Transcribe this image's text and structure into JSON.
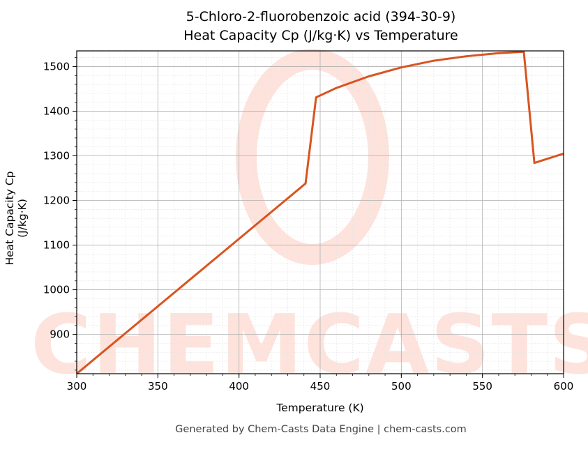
{
  "chart": {
    "title_line1": "5-Chloro-2-fluorobenzoic acid (394-30-9)",
    "title_line2": "Heat Capacity Cp (J/kg·K) vs Temperature",
    "xlabel": "Temperature (K)",
    "ylabel": "Heat Capacity Cp (J/kg·K)",
    "footer": "Generated by Chem-Casts Data Engine | chem-casts.com",
    "watermark": "CHEMCASTS",
    "line_color": "#d95420"
  },
  "chart_data": {
    "type": "line",
    "title": "5-Chloro-2-fluorobenzoic acid (394-30-9) Heat Capacity Cp (J/kg·K) vs Temperature",
    "xlabel": "Temperature (K)",
    "ylabel": "Heat Capacity Cp (J/kg·K)",
    "xlim": [
      300,
      600
    ],
    "ylim": [
      812,
      1535
    ],
    "xticks": [
      300,
      350,
      400,
      450,
      500,
      550,
      600
    ],
    "yticks": [
      900,
      1000,
      1100,
      1200,
      1300,
      1400,
      1500
    ],
    "grid": true,
    "series": [
      {
        "name": "Cp",
        "x": [
          300,
          441,
          447.5,
          460,
          480,
          500,
          520,
          540,
          560,
          575.5,
          582,
          600
        ],
        "y": [
          812,
          1238,
          1431,
          1452,
          1478,
          1498,
          1513,
          1523,
          1530,
          1533,
          1284,
          1305
        ]
      }
    ]
  }
}
